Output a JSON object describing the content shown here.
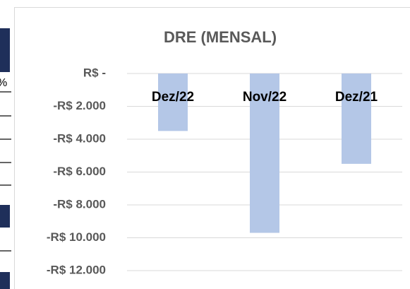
{
  "table_fragment": {
    "header": "%"
  },
  "chart_data": {
    "type": "bar",
    "title": "DRE (MENSAL)",
    "categories": [
      "Dez/22",
      "Nov/22",
      "Dez/21"
    ],
    "values": [
      -3500,
      -9700,
      -5500
    ],
    "color": "#b4c7e7",
    "ylim": [
      -12000,
      0
    ],
    "yticks": [
      {
        "value": 0,
        "label": "R$ -"
      },
      {
        "value": -2000,
        "label": "-R$ 2.000"
      },
      {
        "value": -4000,
        "label": "-R$ 4.000"
      },
      {
        "value": -6000,
        "label": "-R$ 6.000"
      },
      {
        "value": -8000,
        "label": "-R$ 8.000"
      },
      {
        "value": -10000,
        "label": "-R$ 10.000"
      },
      {
        "value": -12000,
        "label": "-R$ 12.000"
      }
    ],
    "grid": true
  }
}
